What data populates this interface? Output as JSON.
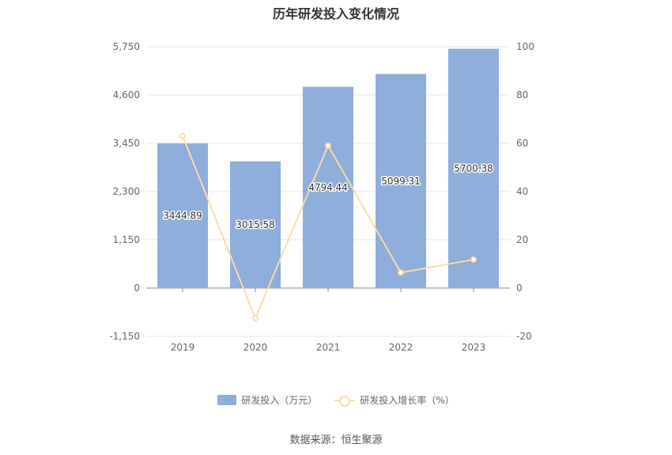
{
  "chart_data": {
    "type": "bar",
    "title": "历年研发投入变化情况",
    "categories": [
      "2019",
      "2020",
      "2021",
      "2022",
      "2023"
    ],
    "series": [
      {
        "name": "研发投入（万元）",
        "type": "bar",
        "axis": "left",
        "values": [
          3444.89,
          3015.58,
          4794.44,
          5099.31,
          5700.38
        ],
        "data_labels": [
          "3444.89",
          "3015.58",
          "4794.44",
          "5099.31",
          "5700.38"
        ],
        "color": "#8eaedb"
      },
      {
        "name": "研发投入增长率（%）",
        "type": "line",
        "axis": "right",
        "values": [
          63.0,
          -12.5,
          59.0,
          6.4,
          11.8
        ],
        "color": "#fcdca4"
      }
    ],
    "y_left": {
      "ylim": [
        -1150,
        5750
      ],
      "ticks": [
        "5,750",
        "4,600",
        "3,450",
        "2,300",
        "1,150",
        "0",
        "-1,150"
      ],
      "tick_values": [
        5750,
        4600,
        3450,
        2300,
        1150,
        0,
        -1150
      ]
    },
    "y_right": {
      "ylim": [
        -20,
        100
      ],
      "ticks": [
        "100",
        "80",
        "60",
        "40",
        "20",
        "0",
        "-20"
      ],
      "tick_values": [
        100,
        80,
        60,
        40,
        20,
        0,
        -20
      ]
    },
    "grid": true,
    "legend": "bottom-center"
  },
  "source": "数据来源：恒生聚源"
}
